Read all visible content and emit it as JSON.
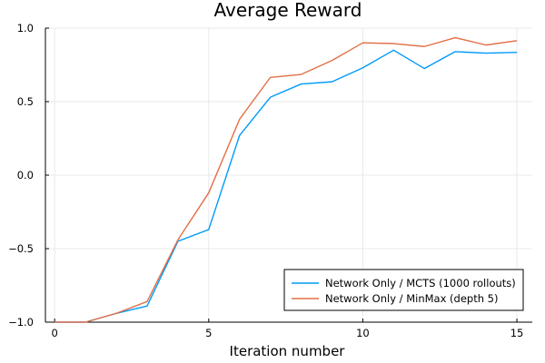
{
  "chart_data": {
    "type": "line",
    "title": "Average Reward",
    "xlabel": "Iteration number",
    "ylabel": "",
    "xlim": [
      -0.3,
      15.5
    ],
    "ylim": [
      -1.0,
      1.0
    ],
    "x_ticks": [
      0,
      5,
      10,
      15
    ],
    "x_tick_labels": [
      "0",
      "5",
      "10",
      "15"
    ],
    "y_ticks": [
      -1.0,
      -0.5,
      0.0,
      0.5,
      1.0
    ],
    "y_tick_labels": [
      "−1.0",
      "−0.5",
      "0.0",
      "0.5",
      "1.0"
    ],
    "grid": true,
    "legend_position": "bottom-right",
    "x": [
      0,
      1,
      2,
      3,
      4,
      5,
      6,
      7,
      8,
      9,
      10,
      11,
      12,
      13,
      14,
      15
    ],
    "series": [
      {
        "name": "Network Only / MCTS (1000 rollouts)",
        "color": "#009AFA",
        "values": [
          -1.0,
          -1.0,
          -0.94,
          -0.89,
          -0.45,
          -0.37,
          0.27,
          0.53,
          0.62,
          0.635,
          0.73,
          0.85,
          0.725,
          0.84,
          0.83,
          0.835
        ]
      },
      {
        "name": "Network Only / MinMax (depth 5)",
        "color": "#E36F47",
        "values": [
          -1.0,
          -1.0,
          -0.94,
          -0.86,
          -0.44,
          -0.12,
          0.38,
          0.665,
          0.685,
          0.78,
          0.9,
          0.895,
          0.875,
          0.935,
          0.885,
          0.915
        ]
      }
    ]
  }
}
